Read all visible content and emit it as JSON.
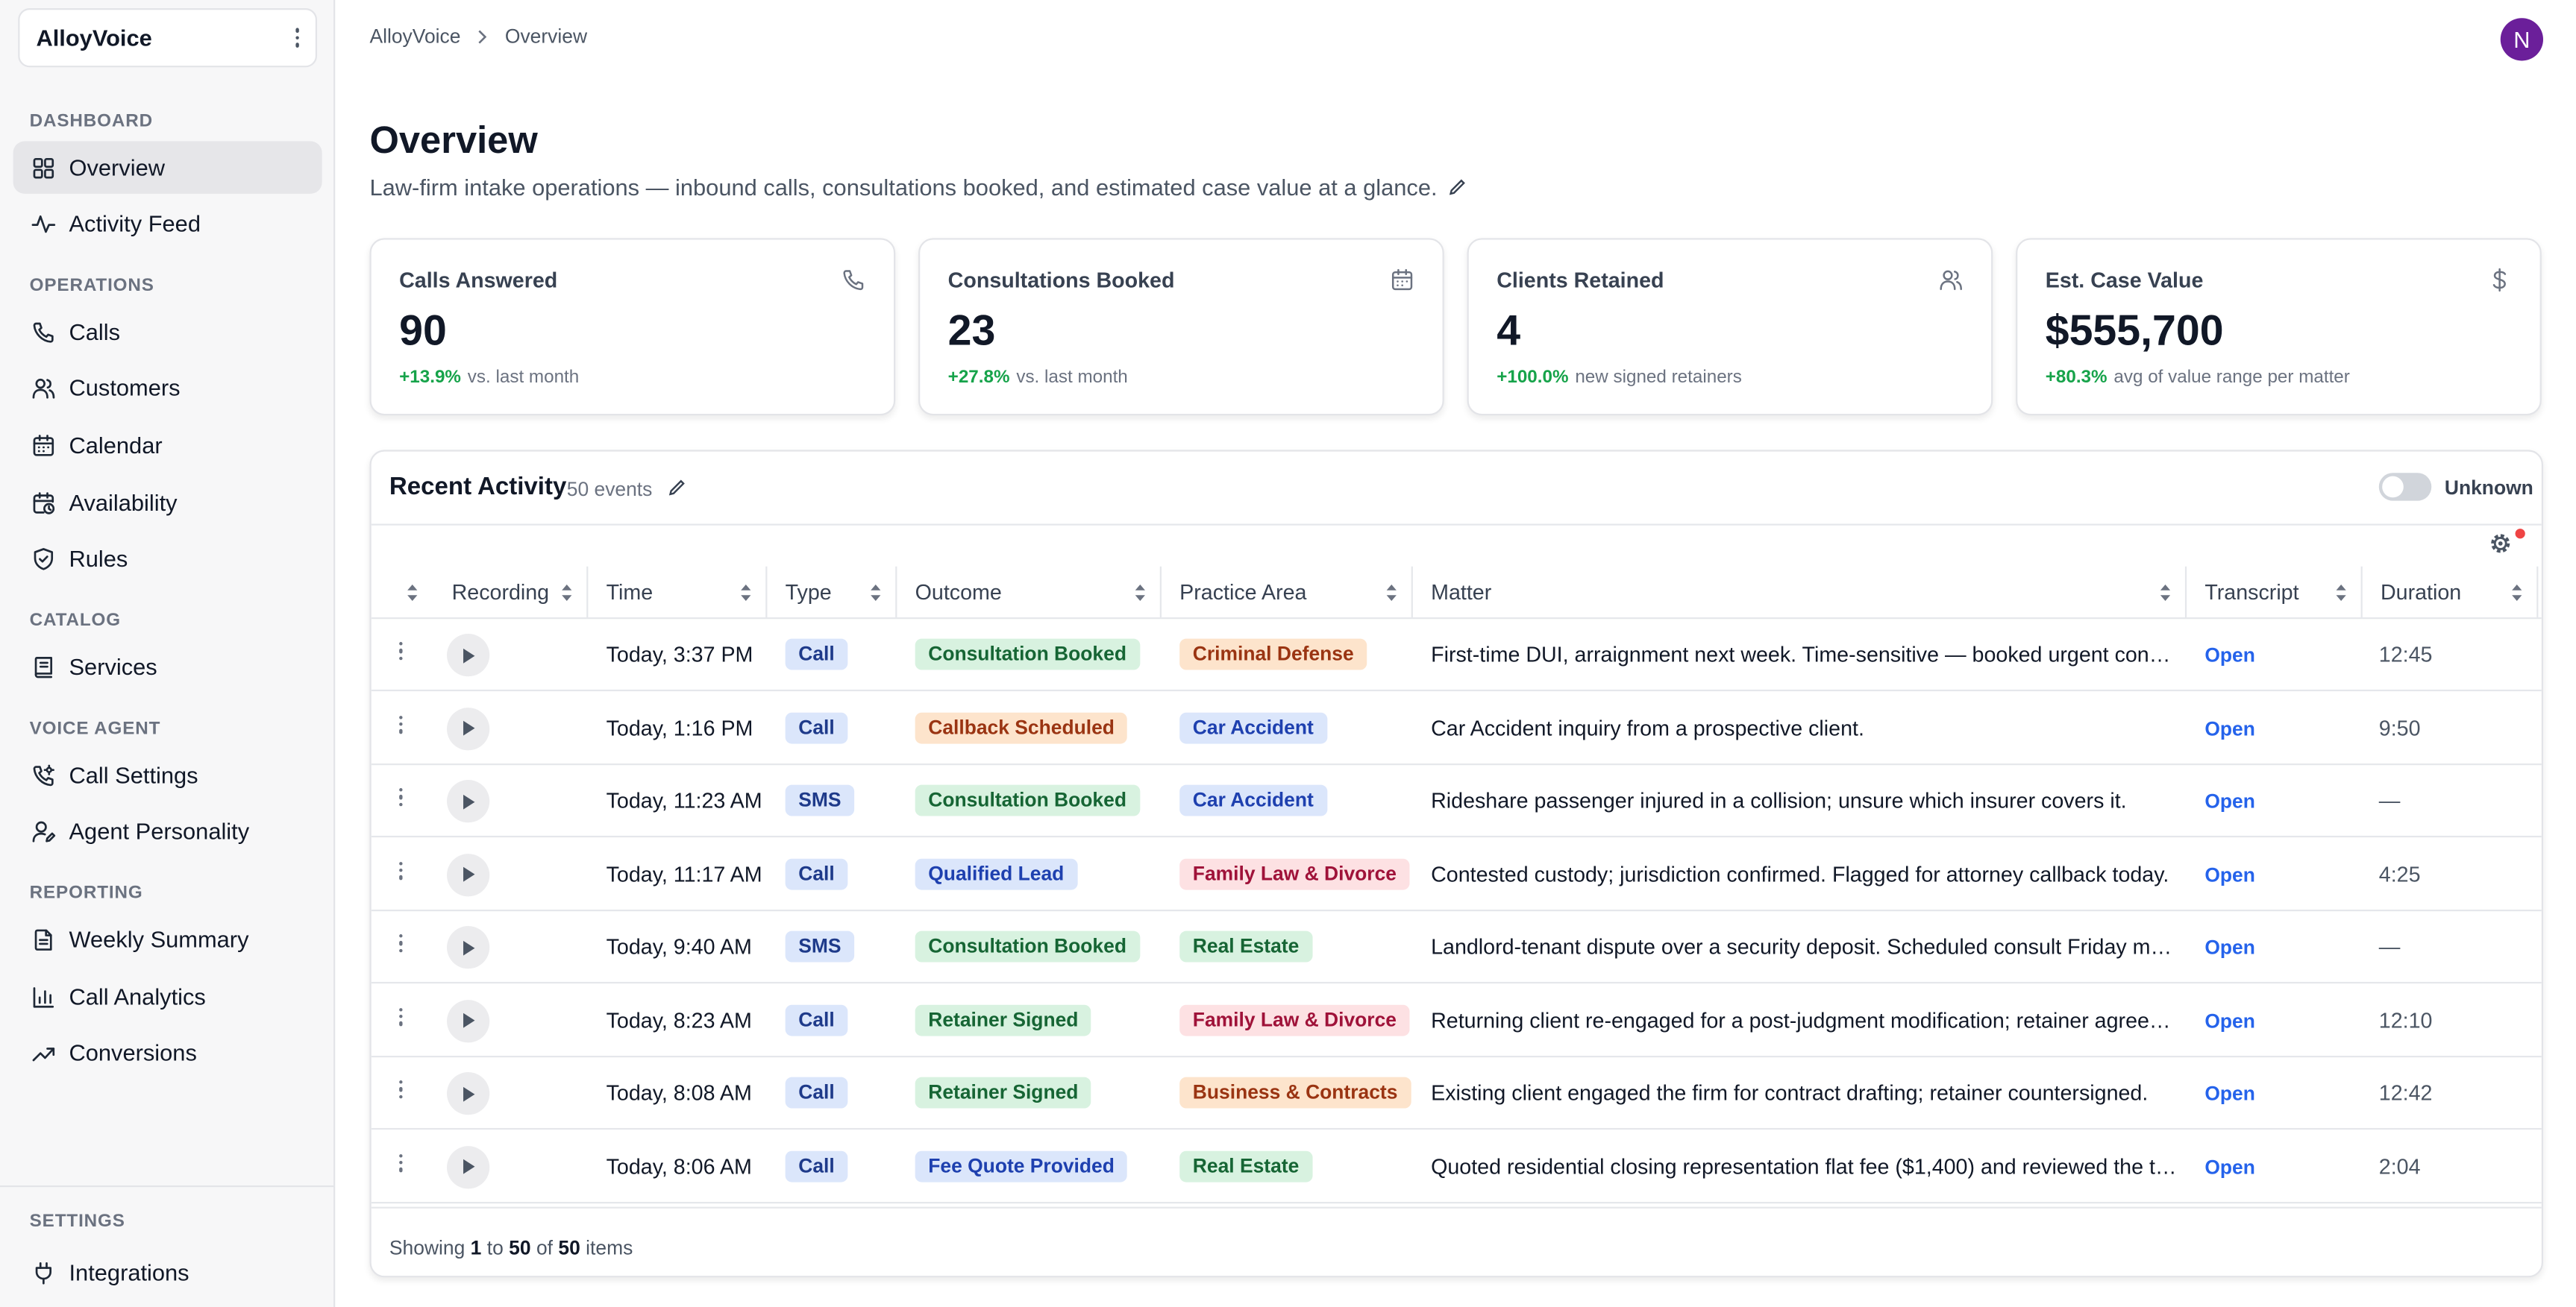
{
  "app": {
    "workspace_name": "AlloyVoice"
  },
  "breadcrumb": {
    "root": "AlloyVoice",
    "current": "Overview"
  },
  "user": {
    "avatar_initial": "N",
    "avatar_color": "#6b1f9a"
  },
  "sidebar": {
    "sections": [
      {
        "label": "DASHBOARD",
        "items": [
          {
            "label": "Overview",
            "icon": "grid-icon",
            "active": true
          },
          {
            "label": "Activity Feed",
            "icon": "pulse-icon"
          }
        ]
      },
      {
        "label": "OPERATIONS",
        "items": [
          {
            "label": "Calls",
            "icon": "phone-icon"
          },
          {
            "label": "Customers",
            "icon": "users-icon"
          },
          {
            "label": "Calendar",
            "icon": "calendar-icon"
          },
          {
            "label": "Availability",
            "icon": "calendar-clock-icon"
          },
          {
            "label": "Rules",
            "icon": "shield-check-icon"
          }
        ]
      },
      {
        "label": "CATALOG",
        "items": [
          {
            "label": "Services",
            "icon": "book-icon"
          }
        ]
      },
      {
        "label": "VOICE AGENT",
        "items": [
          {
            "label": "Call Settings",
            "icon": "phone-settings-icon"
          },
          {
            "label": "Agent Personality",
            "icon": "user-pen-icon"
          }
        ]
      },
      {
        "label": "REPORTING",
        "items": [
          {
            "label": "Weekly Summary",
            "icon": "document-icon"
          },
          {
            "label": "Call Analytics",
            "icon": "bar-chart-icon"
          },
          {
            "label": "Conversions",
            "icon": "trend-up-icon"
          }
        ]
      }
    ],
    "settings": {
      "label": "SETTINGS",
      "items": [
        {
          "label": "Integrations",
          "icon": "plug-icon"
        }
      ]
    }
  },
  "page": {
    "title": "Overview",
    "subtitle": "Law-firm intake operations — inbound calls, consultations booked, and estimated case value at a glance."
  },
  "stats": [
    {
      "label": "Calls Answered",
      "value": "90",
      "delta": "+13.9%",
      "note": "vs. last month",
      "icon": "phone-icon"
    },
    {
      "label": "Consultations Booked",
      "value": "23",
      "delta": "+27.8%",
      "note": "vs. last month",
      "icon": "calendar-icon"
    },
    {
      "label": "Clients Retained",
      "value": "4",
      "delta": "+100.0%",
      "note": "new signed retainers",
      "icon": "users-icon"
    },
    {
      "label": "Est. Case Value",
      "value": "$555,700",
      "delta": "+80.3%",
      "note": "avg of value range per matter",
      "icon": "dollar-icon"
    }
  ],
  "activity": {
    "title": "Recent Activity",
    "count": "50 events",
    "toggle_label": "Unknown",
    "toggle_on": false,
    "columns": [
      "Recording",
      "Time",
      "Type",
      "Outcome",
      "Practice Area",
      "Matter",
      "Transcript",
      "Duration"
    ],
    "rows": [
      {
        "time": "Today, 3:37 PM",
        "type": "Call",
        "outcome": "Consultation Booked",
        "outcome_tone": "green",
        "practice": "Criminal Defense",
        "practice_tone": "orange",
        "matter": "First-time DUI, arraignment next week. Time-sensitive — booked urgent consultation.",
        "transcript": "Open",
        "duration": "12:45"
      },
      {
        "time": "Today, 1:16 PM",
        "type": "Call",
        "outcome": "Callback Scheduled",
        "outcome_tone": "orange",
        "practice": "Car Accident",
        "practice_tone": "blue",
        "matter": "Car Accident inquiry from a prospective client.",
        "transcript": "Open",
        "duration": "9:50"
      },
      {
        "time": "Today, 11:23 AM",
        "type": "SMS",
        "outcome": "Consultation Booked",
        "outcome_tone": "green",
        "practice": "Car Accident",
        "practice_tone": "blue",
        "matter": "Rideshare passenger injured in a collision; unsure which insurer covers it.",
        "transcript": "Open",
        "duration": "—"
      },
      {
        "time": "Today, 11:17 AM",
        "type": "Call",
        "outcome": "Qualified Lead",
        "outcome_tone": "blue",
        "practice": "Family Law & Divorce",
        "practice_tone": "red",
        "matter": "Contested custody; jurisdiction confirmed. Flagged for attorney callback today.",
        "transcript": "Open",
        "duration": "4:25"
      },
      {
        "time": "Today, 9:40 AM",
        "type": "SMS",
        "outcome": "Consultation Booked",
        "outcome_tone": "green",
        "practice": "Real Estate",
        "practice_tone": "green",
        "matter": "Landlord-tenant dispute over a security deposit. Scheduled consult Friday morning.",
        "transcript": "Open",
        "duration": "—"
      },
      {
        "time": "Today, 8:23 AM",
        "type": "Call",
        "outcome": "Retainer Signed",
        "outcome_tone": "green",
        "practice": "Family Law & Divorce",
        "practice_tone": "red",
        "matter": "Returning client re-engaged for a post-judgment modification; retainer agreement signed.",
        "transcript": "Open",
        "duration": "12:10"
      },
      {
        "time": "Today, 8:08 AM",
        "type": "Call",
        "outcome": "Retainer Signed",
        "outcome_tone": "green",
        "practice": "Business & Contracts",
        "practice_tone": "orange",
        "matter": "Existing client engaged the firm for contract drafting; retainer countersigned.",
        "transcript": "Open",
        "duration": "12:42"
      },
      {
        "time": "Today, 8:06 AM",
        "type": "Call",
        "outcome": "Fee Quote Provided",
        "outcome_tone": "blue",
        "practice": "Real Estate",
        "practice_tone": "green",
        "matter": "Quoted residential closing representation flat fee ($1,400) and reviewed the timeline.",
        "transcript": "Open",
        "duration": "2:04"
      }
    ],
    "footer": {
      "prefix": "Showing",
      "from": "1",
      "to_word": "to",
      "to": "50",
      "of_word": "of",
      "total": "50",
      "suffix": "items"
    }
  }
}
